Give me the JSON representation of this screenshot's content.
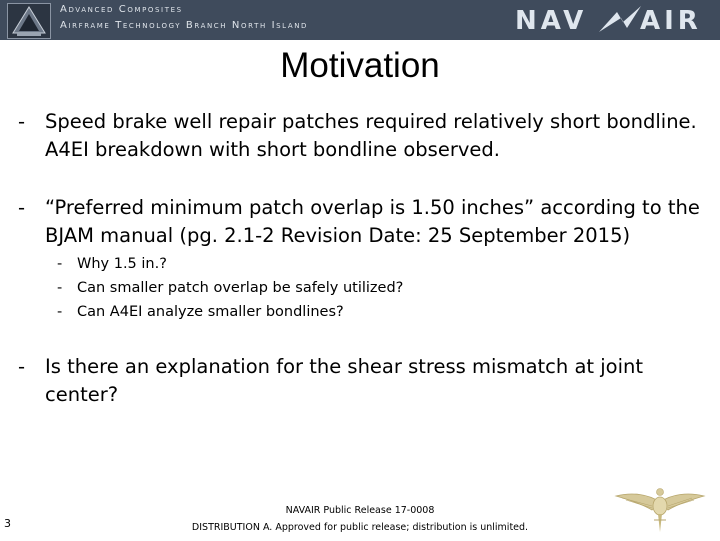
{
  "header": {
    "line1": "Advanced Composites",
    "line2": "Airframe Technology Branch North Island",
    "logo_left_icon": "branch-emblem-icon",
    "logo_right": {
      "part1": "NAV",
      "part2": "AIR",
      "icon": "navair-wing-icon"
    },
    "colors": {
      "band": "#3f4b5c",
      "text": "#dfe4ea"
    }
  },
  "title": "Motivation",
  "bullets": [
    {
      "dash": "-",
      "text": "Speed brake well repair patches required relatively short bondline. A4EI breakdown with short bondline observed."
    },
    {
      "dash": "-",
      "text": "“Preferred minimum patch overlap is 1.50 inches” according to the BJAM manual (pg. 2.1-2 Revision Date: 25 September 2015)",
      "subitems": [
        {
          "dash": "-",
          "text": "Why 1.5 in.?"
        },
        {
          "dash": "-",
          "text": "Can smaller patch overlap be safely utilized?"
        },
        {
          "dash": "-",
          "text": "Can A4EI analyze smaller bondlines?"
        }
      ]
    },
    {
      "dash": "-",
      "text": "Is there an explanation for the shear stress mismatch at joint center?"
    }
  ],
  "footer": {
    "slide_number": "3",
    "release": "NAVAIR Public Release 17-0008",
    "distribution": "DISTRIBUTION A. Approved for public release; distribution is unlimited.",
    "wings_icon": "naval-aviator-wings-icon"
  }
}
